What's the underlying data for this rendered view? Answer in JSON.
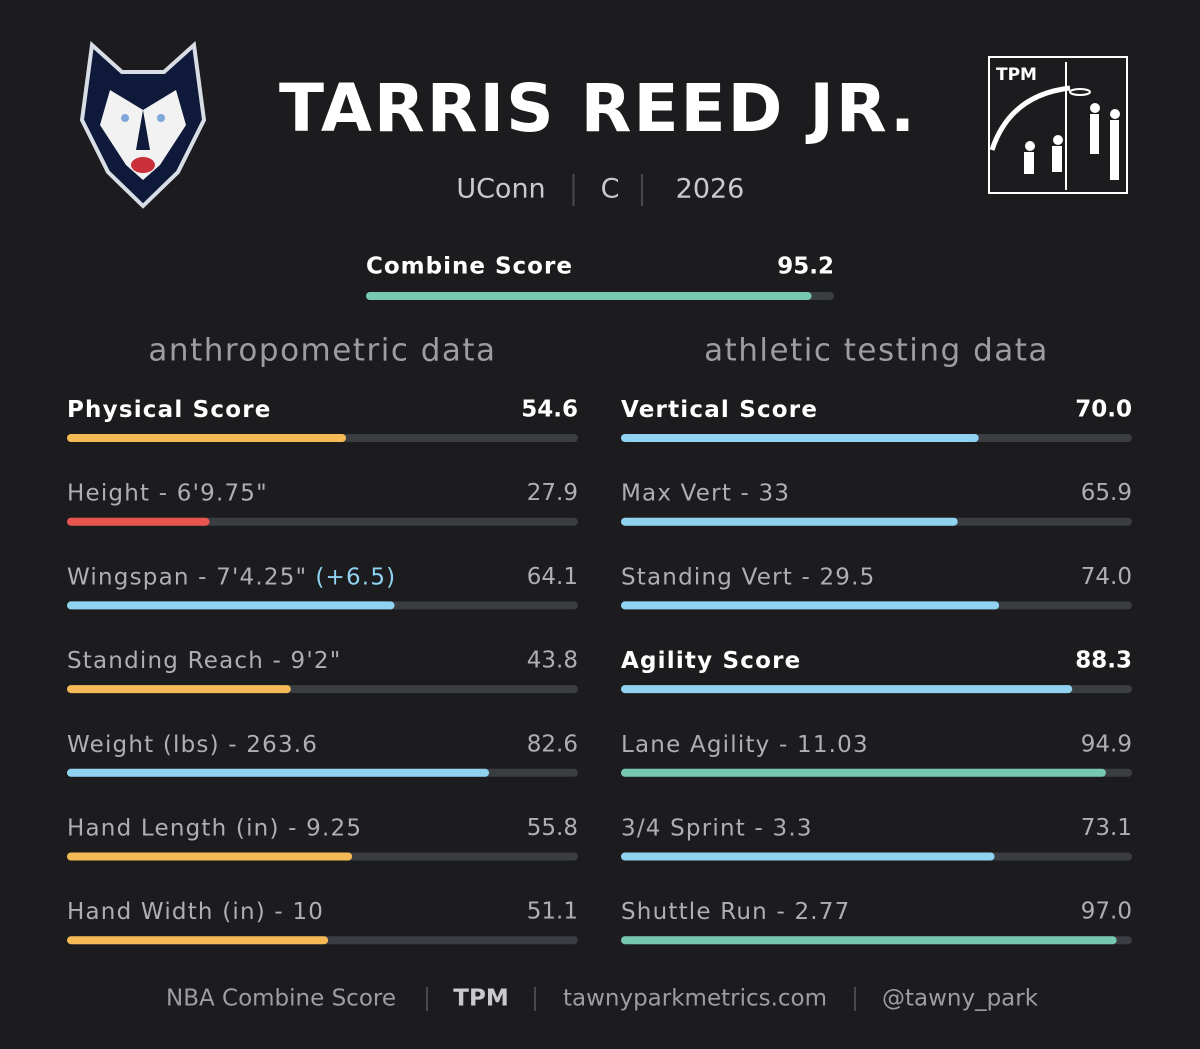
{
  "header": {
    "name": "TARRIS REED JR.",
    "meta": [
      "UConn",
      "C",
      "2026"
    ],
    "logo_text": "TPM"
  },
  "xlim": [
    0,
    100
  ],
  "combine": {
    "label": "Combine Score",
    "value": 95.2,
    "color": "#76c9ae"
  },
  "sections": [
    {
      "title": "anthropometric data",
      "rows": [
        {
          "label": "Physical Score",
          "value": 54.6,
          "color": "#f5b955",
          "bold": true
        },
        {
          "label": "Height - 6'9.75\"",
          "value": 27.9,
          "color": "#e8554e"
        },
        {
          "label": "Wingspan - 7'4.25\"",
          "note": "(+6.5)",
          "value": 64.1,
          "color": "#8fd3f0"
        },
        {
          "label": "Standing Reach - 9'2\"",
          "value": 43.8,
          "color": "#f5b955"
        },
        {
          "label": "Weight (lbs) - 263.6",
          "value": 82.6,
          "color": "#8fd3f0"
        },
        {
          "label": "Hand Length (in) - 9.25",
          "value": 55.8,
          "color": "#f5b955"
        },
        {
          "label": "Hand Width (in) - 10",
          "value": 51.1,
          "color": "#f5b955"
        }
      ]
    },
    {
      "title": "athletic testing data",
      "rows": [
        {
          "label": "Vertical Score",
          "value": 70,
          "value_label": "70.0",
          "color": "#8fd3f0",
          "bold": true
        },
        {
          "label": "Max Vert - 33",
          "value": 65.9,
          "color": "#8fd3f0"
        },
        {
          "label": "Standing Vert - 29.5",
          "value": 74,
          "value_label": "74.0",
          "color": "#8fd3f0"
        },
        {
          "label": "Agility Score",
          "value": 88.3,
          "color": "#8fd3f0",
          "bold": true
        },
        {
          "label": "Lane Agility - 11.03",
          "value": 94.9,
          "color": "#76c9ae"
        },
        {
          "label": "3/4 Sprint - 3.3",
          "value": 73.1,
          "color": "#8fd3f0"
        },
        {
          "label": "Shuttle Run - 2.77",
          "value": 97,
          "value_label": "97.0",
          "color": "#76c9ae"
        }
      ]
    }
  ],
  "footer": [
    {
      "text": "NBA Combine Score"
    },
    {
      "text": "TPM",
      "bold": true
    },
    {
      "text": "tawnyparkmetrics.com"
    },
    {
      "text": "@tawny_park"
    }
  ]
}
